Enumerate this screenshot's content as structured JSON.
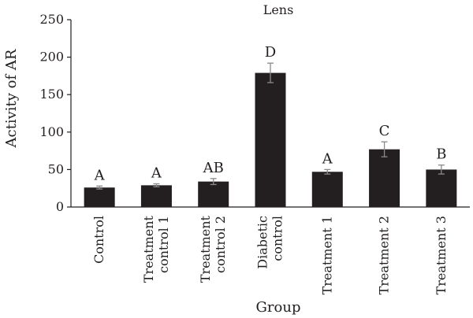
{
  "chart_data": {
    "type": "bar",
    "title": "Lens",
    "xlabel": "Group",
    "ylabel": "Activity of AR",
    "ylim": [
      0,
      250
    ],
    "yticks": [
      0,
      50,
      100,
      150,
      200,
      250
    ],
    "grid": false,
    "legend": "none",
    "bar_color": "#231f20",
    "categories": [
      [
        "Control"
      ],
      [
        "Treatment",
        "control 1"
      ],
      [
        "Treatment",
        "control 2"
      ],
      [
        "Diabetic",
        "control"
      ],
      [
        "Treatment 1"
      ],
      [
        "Treatment 2"
      ],
      [
        "Treatment 3"
      ]
    ],
    "values": [
      26,
      29,
      34,
      179,
      47,
      77,
      50
    ],
    "errors": [
      2,
      2,
      4,
      13,
      3,
      10,
      6
    ],
    "annotations": [
      "A",
      "A",
      "AB",
      "D",
      "A",
      "C",
      "B"
    ]
  }
}
